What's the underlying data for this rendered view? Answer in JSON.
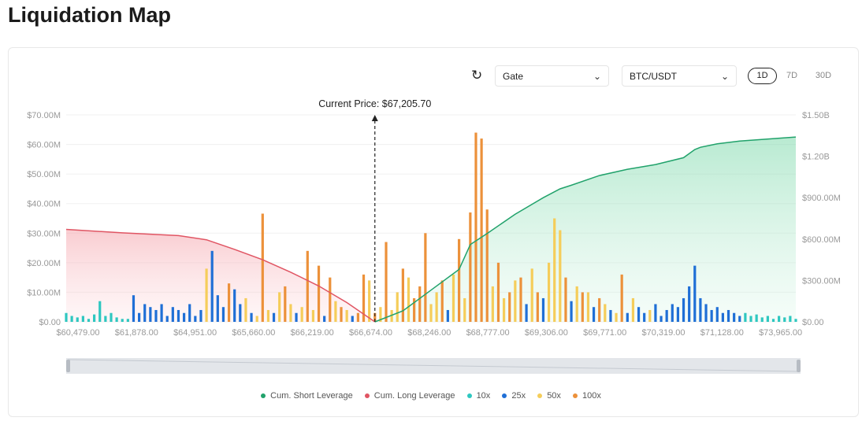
{
  "page_title": "Liquidation Map",
  "controls": {
    "exchange": "Gate",
    "pair": "BTC/USDT",
    "periods": [
      "1D",
      "7D",
      "30D"
    ],
    "active_period": "1D"
  },
  "colors": {
    "10x": "#2ec7c0",
    "25x": "#1f6fd6",
    "50x": "#f5cd5a",
    "100x": "#ec913a",
    "short": "#21a26b",
    "long": "#e05563"
  },
  "chart_data": {
    "type": "bar",
    "annotation": "Current Price: $67,205.70",
    "current_price_index": 55,
    "left_axis": {
      "ticks": [
        "$0.00",
        "$10.00M",
        "$20.00M",
        "$30.00M",
        "$40.00M",
        "$50.00M",
        "$60.00M",
        "$70.00M"
      ],
      "range": [
        0,
        70
      ]
    },
    "right_axis": {
      "ticks": [
        "$0.00",
        "$300.00M",
        "$600.00M",
        "$900.00M",
        "$1.20B",
        "$1.50B"
      ],
      "range": [
        0,
        1500
      ]
    },
    "x_tick_labels": [
      "$60,479.00",
      "$61,878.00",
      "$64,951.00",
      "$65,660.00",
      "$66,219.00",
      "$66,674.00",
      "$68,246.00",
      "$68,777.00",
      "$69,306.00",
      "$69,771.00",
      "$70,319.00",
      "$71,128.00",
      "$73,965.00"
    ],
    "legend": [
      "Cum. Short Leverage",
      "Cum. Long Leverage",
      "10x",
      "25x",
      "50x",
      "100x"
    ],
    "bars": [
      [
        "10x",
        3
      ],
      [
        "10x",
        2
      ],
      [
        "10x",
        1.5
      ],
      [
        "10x",
        2
      ],
      [
        "10x",
        1
      ],
      [
        "10x",
        2.5
      ],
      [
        "10x",
        7
      ],
      [
        "10x",
        2
      ],
      [
        "10x",
        3
      ],
      [
        "10x",
        1.5
      ],
      [
        "10x",
        1
      ],
      [
        "10x",
        1
      ],
      [
        "25x",
        9
      ],
      [
        "25x",
        3
      ],
      [
        "25x",
        6
      ],
      [
        "25x",
        5
      ],
      [
        "25x",
        4
      ],
      [
        "25x",
        6
      ],
      [
        "25x",
        2
      ],
      [
        "25x",
        5
      ],
      [
        "25x",
        4
      ],
      [
        "25x",
        3
      ],
      [
        "25x",
        6
      ],
      [
        "25x",
        2
      ],
      [
        "25x",
        4
      ],
      [
        "50x",
        18
      ],
      [
        "25x",
        24
      ],
      [
        "25x",
        9
      ],
      [
        "25x",
        5
      ],
      [
        "100x",
        13
      ],
      [
        "25x",
        11
      ],
      [
        "25x",
        6
      ],
      [
        "50x",
        8
      ],
      [
        "25x",
        3
      ],
      [
        "50x",
        2
      ],
      [
        "100x",
        36.6
      ],
      [
        "50x",
        4
      ],
      [
        "25x",
        3
      ],
      [
        "50x",
        10
      ],
      [
        "100x",
        12
      ],
      [
        "50x",
        6
      ],
      [
        "25x",
        3
      ],
      [
        "50x",
        5
      ],
      [
        "100x",
        24
      ],
      [
        "50x",
        4
      ],
      [
        "100x",
        19
      ],
      [
        "25x",
        2
      ],
      [
        "100x",
        15
      ],
      [
        "50x",
        7
      ],
      [
        "100x",
        5
      ],
      [
        "50x",
        4
      ],
      [
        "25x",
        2
      ],
      [
        "100x",
        3
      ],
      [
        "100x",
        16
      ],
      [
        "50x",
        14
      ],
      [
        "100x",
        3
      ],
      [
        "50x",
        5
      ],
      [
        "100x",
        27
      ],
      [
        "50x",
        4
      ],
      [
        "50x",
        10
      ],
      [
        "100x",
        18
      ],
      [
        "50x",
        15
      ],
      [
        "100x",
        8
      ],
      [
        "100x",
        12
      ],
      [
        "100x",
        30
      ],
      [
        "50x",
        6
      ],
      [
        "50x",
        10
      ],
      [
        "100x",
        14
      ],
      [
        "25x",
        4
      ],
      [
        "50x",
        16
      ],
      [
        "100x",
        28
      ],
      [
        "50x",
        8
      ],
      [
        "100x",
        37
      ],
      [
        "100x",
        64
      ],
      [
        "100x",
        62
      ],
      [
        "100x",
        38
      ],
      [
        "50x",
        12
      ],
      [
        "100x",
        20
      ],
      [
        "50x",
        8
      ],
      [
        "100x",
        10
      ],
      [
        "50x",
        14
      ],
      [
        "100x",
        15
      ],
      [
        "25x",
        6
      ],
      [
        "50x",
        18
      ],
      [
        "100x",
        10
      ],
      [
        "25x",
        8
      ],
      [
        "50x",
        20
      ],
      [
        "50x",
        35
      ],
      [
        "50x",
        31
      ],
      [
        "100x",
        15
      ],
      [
        "25x",
        7
      ],
      [
        "50x",
        12
      ],
      [
        "100x",
        10
      ],
      [
        "50x",
        10
      ],
      [
        "25x",
        5
      ],
      [
        "100x",
        8
      ],
      [
        "50x",
        6
      ],
      [
        "25x",
        4
      ],
      [
        "50x",
        3
      ],
      [
        "100x",
        16
      ],
      [
        "25x",
        3
      ],
      [
        "50x",
        8
      ],
      [
        "25x",
        5
      ],
      [
        "25x",
        3
      ],
      [
        "50x",
        4
      ],
      [
        "25x",
        6
      ],
      [
        "25x",
        2
      ],
      [
        "25x",
        4
      ],
      [
        "25x",
        6
      ],
      [
        "25x",
        5
      ],
      [
        "25x",
        8
      ],
      [
        "25x",
        12
      ],
      [
        "25x",
        19
      ],
      [
        "25x",
        8
      ],
      [
        "25x",
        6
      ],
      [
        "25x",
        4
      ],
      [
        "25x",
        5
      ],
      [
        "25x",
        3
      ],
      [
        "25x",
        4
      ],
      [
        "25x",
        3
      ],
      [
        "25x",
        2
      ],
      [
        "10x",
        3
      ],
      [
        "10x",
        2
      ],
      [
        "10x",
        2.5
      ],
      [
        "10x",
        1.5
      ],
      [
        "10x",
        2
      ],
      [
        "10x",
        1
      ],
      [
        "10x",
        2
      ],
      [
        "10x",
        1.5
      ],
      [
        "10x",
        2
      ],
      [
        "10x",
        1
      ]
    ],
    "cum_long": {
      "axis": "right",
      "index": [
        0,
        10,
        20,
        25,
        30,
        35,
        40,
        45,
        50,
        55
      ],
      "values": [
        670,
        645,
        625,
        595,
        525,
        450,
        360,
        260,
        140,
        0
      ]
    },
    "cum_short": {
      "axis": "right",
      "index": [
        55,
        60,
        65,
        70,
        72,
        75,
        80,
        85,
        88,
        90,
        95,
        100,
        105,
        110,
        112,
        113,
        116,
        120,
        130
      ],
      "values": [
        0,
        80,
        230,
        380,
        560,
        640,
        780,
        900,
        964,
        990,
        1060,
        1106,
        1140,
        1190,
        1249,
        1265,
        1290,
        1310,
        1340
      ]
    }
  }
}
